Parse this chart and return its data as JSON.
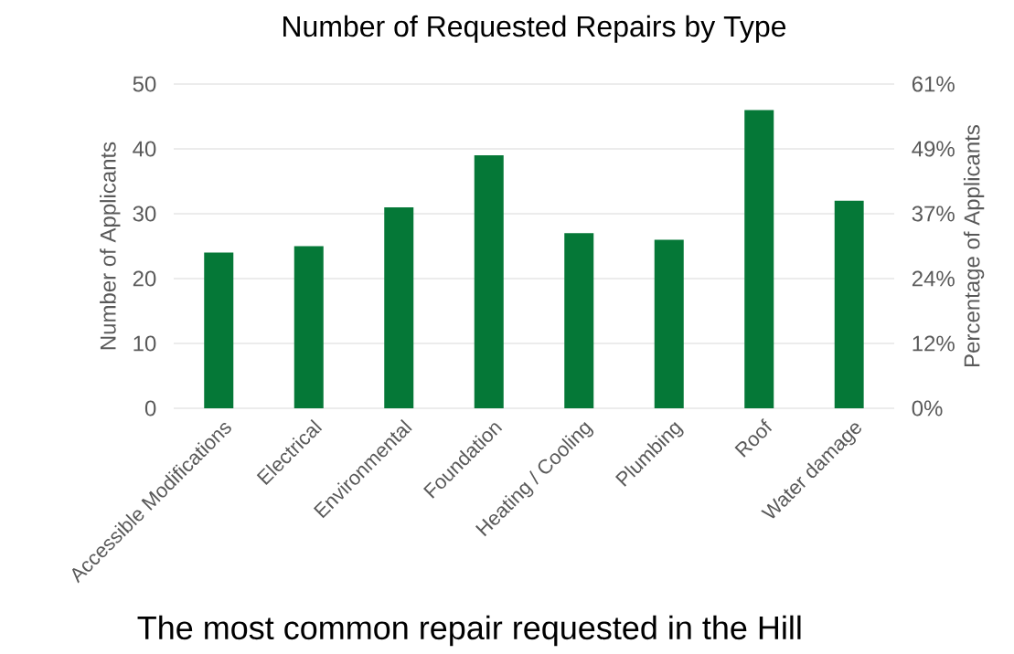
{
  "chart_data": {
    "type": "bar",
    "title": "Number of Requested Repairs by Type",
    "categories": [
      "Accessible Modifications",
      "Electrical",
      "Environmental",
      "Foundation",
      "Heating / Cooling",
      "Plumbing",
      "Roof",
      "Water damage"
    ],
    "values": [
      24,
      25,
      31,
      39,
      27,
      26,
      46,
      32
    ],
    "color": "#057837",
    "ylabel": "Number of Applicants",
    "y2label": "Percentage of Applicants",
    "ylim": [
      0,
      50
    ],
    "yticks": [
      0,
      10,
      20,
      30,
      40,
      50
    ],
    "y2lim": [
      0,
      61
    ],
    "y2ticks": [
      {
        "value": 0,
        "label": "0%"
      },
      {
        "value": 12.2,
        "label": "12%"
      },
      {
        "value": 24.4,
        "label": "24%"
      },
      {
        "value": 36.6,
        "label": "37%"
      },
      {
        "value": 48.8,
        "label": "49%"
      },
      {
        "value": 61,
        "label": "61%"
      }
    ],
    "grid": "y",
    "annotations": [
      "The most common repair requested in the Hill"
    ]
  }
}
